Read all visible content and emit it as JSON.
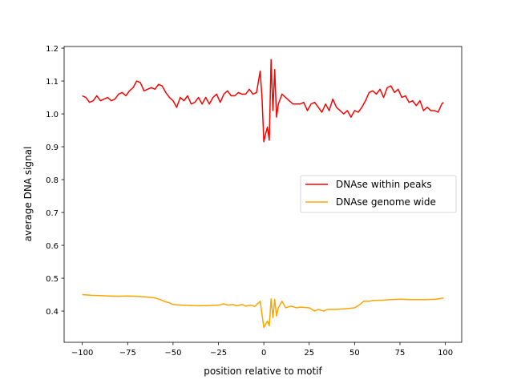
{
  "chart_data": {
    "type": "line",
    "title": "",
    "xlabel": "position relative to motif",
    "ylabel": "average DNA signal",
    "xlim": [
      -110,
      109
    ],
    "ylim": [
      0.305,
      1.205
    ],
    "xticks": [
      -100,
      -75,
      -50,
      -25,
      0,
      25,
      50,
      75,
      100
    ],
    "xtick_labels": [
      "−100",
      "−75",
      "−50",
      "−25",
      "0",
      "25",
      "50",
      "75",
      "100"
    ],
    "yticks": [
      0.4,
      0.5,
      0.6,
      0.7,
      0.8,
      0.9,
      1.0,
      1.1,
      1.2
    ],
    "ytick_labels": [
      "0.4",
      "0.5",
      "0.6",
      "0.7",
      "0.8",
      "0.9",
      "1.0",
      "1.1",
      "1.2"
    ],
    "grid": false,
    "legend_position": "center-right",
    "series": [
      {
        "name": "DNAse within peaks",
        "color": "#ff0000",
        "x": [
          -100,
          -98,
          -96,
          -94,
          -92,
          -90,
          -88,
          -86,
          -84,
          -82,
          -80,
          -78,
          -76,
          -74,
          -72,
          -70,
          -68,
          -66,
          -64,
          -62,
          -60,
          -58,
          -56,
          -54,
          -52,
          -50,
          -48,
          -46,
          -44,
          -42,
          -40,
          -38,
          -36,
          -34,
          -32,
          -30,
          -28,
          -26,
          -24,
          -22,
          -20,
          -18,
          -16,
          -14,
          -12,
          -10,
          -8,
          -6,
          -4,
          -2,
          -1,
          0,
          1,
          2,
          3,
          4,
          5,
          6,
          7,
          8,
          10,
          12,
          14,
          16,
          18,
          20,
          22,
          24,
          26,
          28,
          30,
          32,
          34,
          36,
          38,
          40,
          42,
          44,
          46,
          48,
          50,
          52,
          54,
          56,
          58,
          60,
          62,
          64,
          66,
          68,
          70,
          72,
          74,
          76,
          78,
          80,
          82,
          84,
          86,
          88,
          90,
          92,
          94,
          96,
          98,
          99
        ],
        "y": [
          1.055,
          1.05,
          1.035,
          1.04,
          1.055,
          1.04,
          1.045,
          1.05,
          1.04,
          1.045,
          1.06,
          1.065,
          1.055,
          1.07,
          1.08,
          1.1,
          1.095,
          1.07,
          1.075,
          1.08,
          1.075,
          1.09,
          1.085,
          1.065,
          1.05,
          1.04,
          1.02,
          1.05,
          1.04,
          1.055,
          1.03,
          1.035,
          1.05,
          1.03,
          1.05,
          1.03,
          1.05,
          1.06,
          1.035,
          1.06,
          1.07,
          1.055,
          1.055,
          1.065,
          1.06,
          1.06,
          1.075,
          1.06,
          1.065,
          1.13,
          1.05,
          0.915,
          0.94,
          0.96,
          0.92,
          1.165,
          1.01,
          1.135,
          0.99,
          1.03,
          1.06,
          1.05,
          1.04,
          1.03,
          1.03,
          1.03,
          1.035,
          1.01,
          1.03,
          1.035,
          1.02,
          1.005,
          1.03,
          1.01,
          1.045,
          1.02,
          1.01,
          1.0,
          1.01,
          0.99,
          1.01,
          1.005,
          1.02,
          1.04,
          1.065,
          1.07,
          1.06,
          1.075,
          1.05,
          1.08,
          1.085,
          1.065,
          1.075,
          1.05,
          1.055,
          1.035,
          1.04,
          1.025,
          1.04,
          1.01,
          1.02,
          1.01,
          1.01,
          1.005,
          1.03,
          1.035
        ]
      },
      {
        "name": "DNAse genome wide",
        "color": "#ffa500",
        "x": [
          -100,
          -95,
          -90,
          -85,
          -80,
          -75,
          -70,
          -65,
          -60,
          -57,
          -55,
          -52,
          -50,
          -45,
          -40,
          -35,
          -30,
          -25,
          -22,
          -20,
          -17,
          -15,
          -12,
          -10,
          -7,
          -5,
          -2,
          -1,
          0,
          1,
          2,
          3,
          4,
          5,
          6,
          7,
          8,
          10,
          12,
          15,
          18,
          20,
          25,
          28,
          30,
          33,
          35,
          40,
          45,
          50,
          53,
          55,
          58,
          60,
          65,
          70,
          75,
          80,
          85,
          90,
          95,
          99
        ],
        "y": [
          0.45,
          0.448,
          0.447,
          0.446,
          0.445,
          0.446,
          0.445,
          0.443,
          0.44,
          0.435,
          0.43,
          0.425,
          0.42,
          0.418,
          0.417,
          0.416,
          0.417,
          0.418,
          0.422,
          0.418,
          0.42,
          0.416,
          0.42,
          0.415,
          0.418,
          0.414,
          0.43,
          0.39,
          0.35,
          0.36,
          0.37,
          0.355,
          0.437,
          0.38,
          0.435,
          0.385,
          0.41,
          0.43,
          0.41,
          0.415,
          0.41,
          0.412,
          0.41,
          0.4,
          0.405,
          0.4,
          0.405,
          0.405,
          0.407,
          0.41,
          0.42,
          0.43,
          0.43,
          0.432,
          0.433,
          0.435,
          0.436,
          0.435,
          0.435,
          0.435,
          0.436,
          0.44
        ]
      }
    ]
  }
}
